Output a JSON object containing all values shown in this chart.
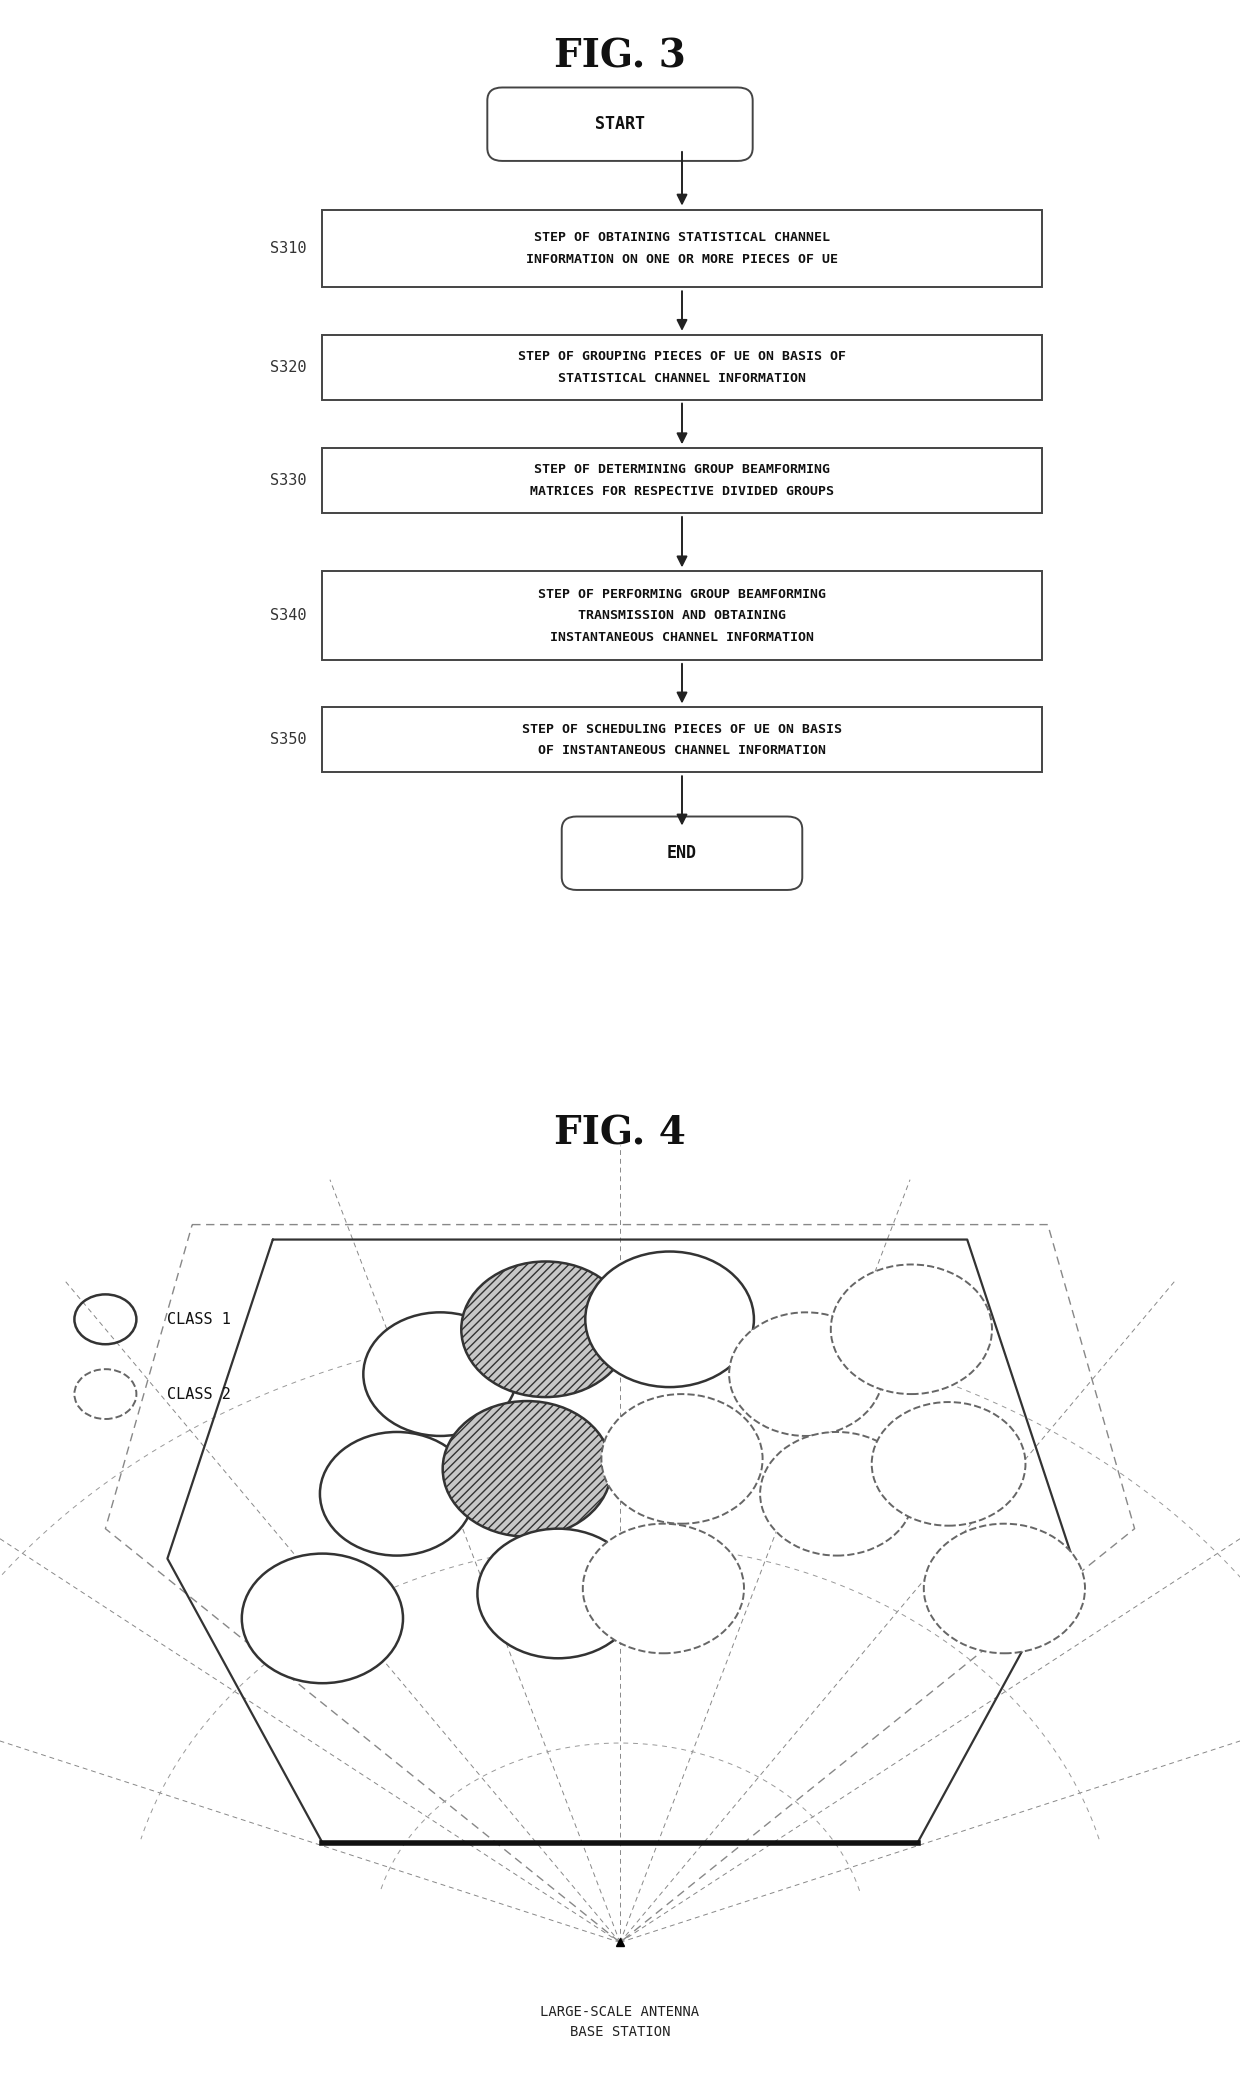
{
  "fig3_title": "FIG. 3",
  "fig4_title": "FIG. 4",
  "steps": [
    {
      "id": "S310",
      "lines": [
        "STEP OF OBTAINING STATISTICAL CHANNEL",
        "INFORMATION ON ONE OR MORE PIECES OF UE"
      ],
      "nlines": 2
    },
    {
      "id": "S320",
      "lines": [
        "STEP OF GROUPING PIECES OF UE ON BASIS OF",
        "STATISTICAL CHANNEL INFORMATION"
      ],
      "nlines": 2
    },
    {
      "id": "S330",
      "lines": [
        "STEP OF DETERMINING GROUP BEAMFORMING",
        "MATRICES FOR RESPECTIVE DIVIDED GROUPS"
      ],
      "nlines": 2
    },
    {
      "id": "S340",
      "lines": [
        "STEP OF PERFORMING GROUP BEAMFORMING",
        "TRANSMISSION AND OBTAINING",
        "INSTANTANEOUS CHANNEL INFORMATION"
      ],
      "nlines": 3
    },
    {
      "id": "S350",
      "lines": [
        "STEP OF SCHEDULING PIECES OF UE ON BASIS",
        "OF INSTANTANEOUS CHANNEL INFORMATION"
      ],
      "nlines": 2
    }
  ],
  "background_color": "#ffffff",
  "fig4_label": "LARGE-SCALE ANTENNA\nBASE STATION",
  "legend_class1": "CLASS 1",
  "legend_class2": "CLASS 2",
  "circles": [
    [
      3.55,
      7.05,
      0.62,
      1,
      false
    ],
    [
      3.2,
      5.85,
      0.62,
      1,
      false
    ],
    [
      2.6,
      4.6,
      0.65,
      1,
      false
    ],
    [
      4.4,
      7.5,
      0.68,
      1,
      true
    ],
    [
      4.25,
      6.1,
      0.68,
      1,
      true
    ],
    [
      4.5,
      4.85,
      0.65,
      1,
      false
    ],
    [
      5.4,
      7.6,
      0.68,
      1,
      false
    ],
    [
      5.5,
      6.2,
      0.65,
      2,
      false
    ],
    [
      5.35,
      4.9,
      0.65,
      2,
      false
    ],
    [
      6.5,
      7.05,
      0.62,
      2,
      false
    ],
    [
      6.75,
      5.85,
      0.62,
      2,
      false
    ],
    [
      7.35,
      7.5,
      0.65,
      2,
      false
    ],
    [
      7.65,
      6.15,
      0.62,
      2,
      false
    ],
    [
      8.1,
      4.9,
      0.65,
      2,
      false
    ]
  ]
}
